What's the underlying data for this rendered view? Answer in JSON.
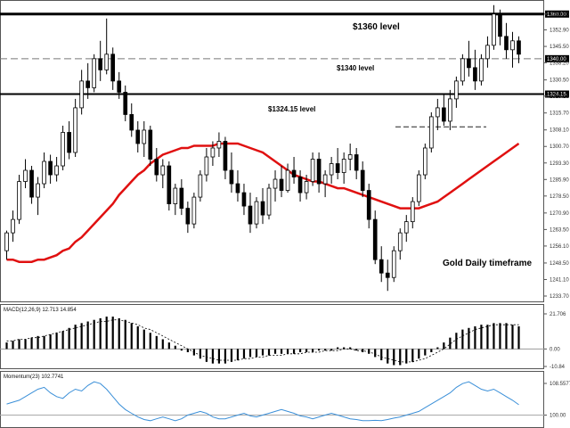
{
  "chart_data": [
    {
      "type": "candlestick",
      "annotations": [
        "$1360  level",
        "$1340 level",
        "$1324.15  level",
        "Gold Daily timeframe"
      ],
      "yticks": [
        "1360.00",
        "1352.90",
        "1345.50",
        "1338.20",
        "1330.50",
        "1323.25",
        "1315.70",
        "1308.10",
        "1300.70",
        "1293.30",
        "1285.90",
        "1278.50",
        "1270.90",
        "1263.50",
        "1256.10",
        "1248.50",
        "1241.10",
        "1233.70"
      ],
      "ylim": [
        1233.7,
        1361.5
      ],
      "levels": [
        {
          "label": "1360.00",
          "value": 1360.0,
          "style": "solid"
        },
        {
          "label": "1340.00",
          "value": 1340.0,
          "style": "dashed"
        },
        {
          "label": "1324.15",
          "value": 1324.15,
          "style": "solid"
        },
        {
          "label": "",
          "value": 1309.5,
          "style": "dashed",
          "partial": true
        }
      ],
      "ohlc": [
        [
          1254,
          1263,
          1250,
          1262
        ],
        [
          1262,
          1272,
          1258,
          1268
        ],
        [
          1268,
          1288,
          1266,
          1285
        ],
        [
          1285,
          1295,
          1282,
          1290
        ],
        [
          1290,
          1292,
          1275,
          1278
        ],
        [
          1278,
          1287,
          1270,
          1284
        ],
        [
          1284,
          1298,
          1282,
          1294
        ],
        [
          1294,
          1297,
          1284,
          1288
        ],
        [
          1288,
          1296,
          1285,
          1292
        ],
        [
          1292,
          1310,
          1290,
          1307
        ],
        [
          1307,
          1312,
          1295,
          1298
        ],
        [
          1298,
          1322,
          1296,
          1318
        ],
        [
          1318,
          1335,
          1315,
          1330
        ],
        [
          1330,
          1338,
          1322,
          1327
        ],
        [
          1327,
          1342,
          1325,
          1340
        ],
        [
          1340,
          1348,
          1330,
          1335
        ],
        [
          1335,
          1358,
          1333,
          1342
        ],
        [
          1342,
          1345,
          1326,
          1330
        ],
        [
          1330,
          1334,
          1322,
          1325
        ],
        [
          1325,
          1328,
          1312,
          1315
        ],
        [
          1315,
          1320,
          1305,
          1308
        ],
        [
          1308,
          1312,
          1298,
          1302
        ],
        [
          1302,
          1312,
          1296,
          1308
        ],
        [
          1308,
          1310,
          1292,
          1295
        ],
        [
          1295,
          1300,
          1285,
          1288
        ],
        [
          1288,
          1295,
          1282,
          1292
        ],
        [
          1292,
          1294,
          1272,
          1275
        ],
        [
          1275,
          1284,
          1270,
          1282
        ],
        [
          1282,
          1286,
          1270,
          1273
        ],
        [
          1273,
          1276,
          1262,
          1266
        ],
        [
          1266,
          1280,
          1264,
          1278
        ],
        [
          1278,
          1290,
          1276,
          1288
        ],
        [
          1288,
          1300,
          1285,
          1296
        ],
        [
          1296,
          1303,
          1292,
          1300
        ],
        [
          1300,
          1307,
          1296,
          1303
        ],
        [
          1303,
          1305,
          1286,
          1290
        ],
        [
          1290,
          1298,
          1280,
          1284
        ],
        [
          1284,
          1290,
          1276,
          1280
        ],
        [
          1280,
          1284,
          1270,
          1274
        ],
        [
          1274,
          1280,
          1262,
          1266
        ],
        [
          1266,
          1278,
          1264,
          1276
        ],
        [
          1276,
          1282,
          1266,
          1270
        ],
        [
          1270,
          1284,
          1268,
          1282
        ],
        [
          1282,
          1290,
          1276,
          1286
        ],
        [
          1286,
          1292,
          1278,
          1281
        ],
        [
          1281,
          1293,
          1280,
          1290
        ],
        [
          1290,
          1296,
          1284,
          1287
        ],
        [
          1287,
          1290,
          1276,
          1280
        ],
        [
          1280,
          1288,
          1277,
          1285
        ],
        [
          1285,
          1298,
          1283,
          1295
        ],
        [
          1295,
          1298,
          1280,
          1284
        ],
        [
          1284,
          1290,
          1278,
          1288
        ],
        [
          1288,
          1296,
          1284,
          1293
        ],
        [
          1293,
          1300,
          1286,
          1289
        ],
        [
          1289,
          1298,
          1284,
          1295
        ],
        [
          1295,
          1302,
          1290,
          1297
        ],
        [
          1297,
          1300,
          1286,
          1290
        ],
        [
          1290,
          1294,
          1278,
          1281
        ],
        [
          1281,
          1284,
          1264,
          1268
        ],
        [
          1268,
          1272,
          1248,
          1250
        ],
        [
          1250,
          1256,
          1240,
          1244
        ],
        [
          1244,
          1250,
          1236,
          1242
        ],
        [
          1242,
          1256,
          1240,
          1254
        ],
        [
          1254,
          1264,
          1250,
          1262
        ],
        [
          1262,
          1270,
          1258,
          1267
        ],
        [
          1267,
          1278,
          1264,
          1276
        ],
        [
          1276,
          1290,
          1274,
          1288
        ],
        [
          1288,
          1302,
          1286,
          1300
        ],
        [
          1300,
          1316,
          1298,
          1314
        ],
        [
          1314,
          1322,
          1308,
          1318
        ],
        [
          1318,
          1324,
          1310,
          1312
        ],
        [
          1312,
          1326,
          1308,
          1322
        ],
        [
          1322,
          1332,
          1318,
          1330
        ],
        [
          1330,
          1342,
          1328,
          1340
        ],
        [
          1340,
          1348,
          1332,
          1336
        ],
        [
          1336,
          1344,
          1326,
          1330
        ],
        [
          1330,
          1342,
          1328,
          1340
        ],
        [
          1340,
          1350,
          1336,
          1346
        ],
        [
          1346,
          1364,
          1344,
          1360
        ],
        [
          1360,
          1362,
          1346,
          1350
        ],
        [
          1350,
          1356,
          1340,
          1344
        ],
        [
          1344,
          1352,
          1336,
          1348
        ],
        [
          1348,
          1350,
          1338,
          1342
        ]
      ],
      "ma_series": [
        1250,
        1250,
        1249,
        1249,
        1249,
        1250,
        1250,
        1251,
        1252,
        1254,
        1255,
        1258,
        1260,
        1263,
        1266,
        1269,
        1272,
        1275,
        1279,
        1282,
        1285,
        1288,
        1290,
        1293,
        1295,
        1297,
        1298,
        1299,
        1300,
        1300,
        1301,
        1301,
        1301,
        1301,
        1302,
        1302,
        1302,
        1302,
        1301,
        1300,
        1299,
        1298,
        1296,
        1294,
        1292,
        1290,
        1288,
        1287,
        1286,
        1285,
        1285,
        1284,
        1283,
        1282,
        1282,
        1281,
        1280,
        1279,
        1278,
        1277,
        1276,
        1275,
        1274,
        1273,
        1273,
        1273,
        1273,
        1274,
        1275,
        1276,
        1278,
        1280,
        1282,
        1284,
        1286,
        1288,
        1290,
        1292,
        1294,
        1296,
        1298,
        1300,
        1302
      ]
    },
    {
      "type": "bar",
      "title": "MACD(12,26,9) 12.713 14.854",
      "yticks": [
        "21.706",
        "0.00",
        "-10.84"
      ],
      "ylim": [
        -10.84,
        21.706
      ],
      "values": [
        4,
        5,
        6,
        6,
        7,
        8,
        8,
        9,
        10,
        11,
        13,
        15,
        16,
        17,
        18,
        19,
        20,
        20,
        19,
        18,
        16,
        14,
        12,
        10,
        8,
        6,
        4,
        2,
        -1,
        -2,
        -4,
        -6,
        -8,
        -9,
        -9,
        -9,
        -8,
        -7,
        -6,
        -5,
        -5,
        -4,
        -4,
        -3,
        -3,
        -3,
        -3,
        -2,
        -2,
        -2,
        -1,
        -1,
        -1,
        1,
        1,
        1,
        -1,
        -2,
        -3,
        -5,
        -7,
        -9,
        -10,
        -10,
        -9,
        -8,
        -6,
        -4,
        -2,
        1,
        4,
        7,
        10,
        12,
        13,
        14,
        15,
        15,
        16,
        16,
        16,
        15,
        14
      ],
      "signal": [
        5,
        5,
        6,
        6,
        7,
        7,
        8,
        9,
        10,
        11,
        12,
        13,
        14,
        15,
        16,
        17,
        17,
        18,
        18,
        17,
        16,
        15,
        13,
        12,
        10,
        8,
        6,
        4,
        2,
        0,
        -2,
        -4,
        -5,
        -6,
        -7,
        -7,
        -7,
        -7,
        -6,
        -6,
        -5,
        -5,
        -4,
        -4,
        -4,
        -3,
        -3,
        -3,
        -2,
        -2,
        -2,
        -1,
        -1,
        -1,
        0,
        0,
        -1,
        -1,
        -2,
        -3,
        -5,
        -6,
        -7,
        -8,
        -8,
        -8,
        -7,
        -6,
        -4,
        -2,
        0,
        3,
        6,
        8,
        10,
        12,
        13,
        14,
        15,
        15,
        15,
        15,
        15
      ]
    },
    {
      "type": "line",
      "title": "Momentum(23) 102.7741",
      "yticks": [
        "108.5577",
        "100.00"
      ],
      "ylim": [
        97,
        110
      ],
      "values": [
        103,
        103.5,
        104,
        105,
        106,
        107,
        107.5,
        106,
        105,
        104.5,
        106,
        107,
        106.5,
        108,
        109,
        108.5,
        107,
        105,
        103,
        101.5,
        100.5,
        99.5,
        98.8,
        98.5,
        99,
        99.5,
        99,
        98.5,
        99,
        100,
        100.5,
        101,
        100.5,
        99.5,
        99,
        99,
        99.5,
        100,
        100.5,
        99.8,
        99.5,
        100,
        100.5,
        101,
        101.5,
        101,
        100.5,
        99.8,
        99.5,
        99,
        99.5,
        100,
        100.5,
        100,
        99.5,
        99,
        98.8,
        98.5,
        98.5,
        98.6,
        98.5,
        98.8,
        99.2,
        99.5,
        100,
        100.5,
        101,
        102,
        103,
        104,
        105,
        106,
        107.5,
        108.5,
        109,
        108,
        107,
        106.5,
        107,
        106,
        105,
        104,
        102.8
      ]
    }
  ]
}
